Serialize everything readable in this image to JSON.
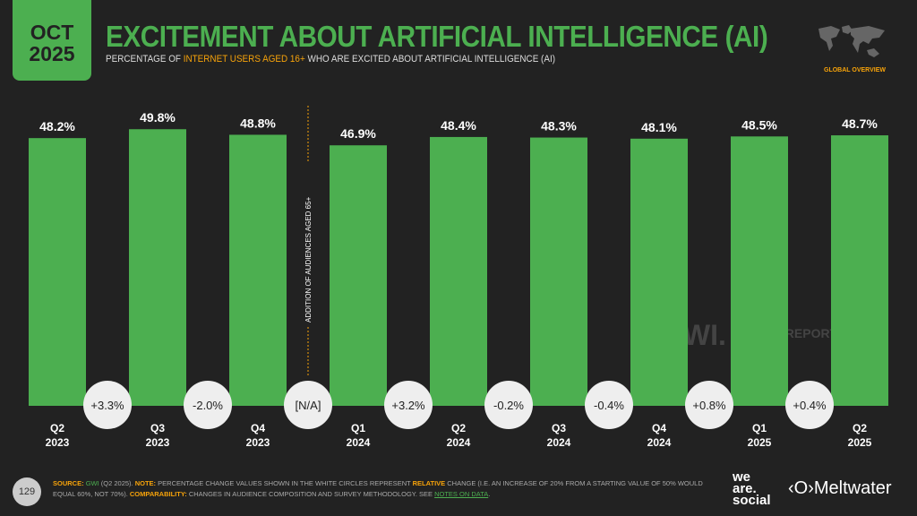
{
  "date": {
    "month": "OCT",
    "year": "2025"
  },
  "title": "EXCITEMENT ABOUT ARTIFICIAL INTELLIGENCE (AI)",
  "subtitle": {
    "pre": "PERCENTAGE OF ",
    "highlight": "INTERNET USERS AGED 16+",
    "post": " WHO ARE EXCITED ABOUT ARTIFICIAL INTELLIGENCE (AI)"
  },
  "region": "GLOBAL OVERVIEW",
  "chart_data": {
    "type": "bar",
    "categories": [
      [
        "Q2",
        "2023"
      ],
      [
        "Q3",
        "2023"
      ],
      [
        "Q4",
        "2023"
      ],
      [
        "Q1",
        "2024"
      ],
      [
        "Q2",
        "2024"
      ],
      [
        "Q3",
        "2024"
      ],
      [
        "Q4",
        "2024"
      ],
      [
        "Q1",
        "2025"
      ],
      [
        "Q2",
        "2025"
      ]
    ],
    "values": [
      48.2,
      49.8,
      48.8,
      46.9,
      48.4,
      48.3,
      48.1,
      48.5,
      48.7
    ],
    "value_labels": [
      "48.2%",
      "49.8%",
      "48.8%",
      "46.9%",
      "48.4%",
      "48.3%",
      "48.1%",
      "48.5%",
      "48.7%"
    ],
    "changes": [
      "+3.3%",
      "-2.0%",
      "[N/A]",
      "+3.2%",
      "-0.2%",
      "-0.4%",
      "+0.8%",
      "+0.4%"
    ],
    "annotation": "ADDITION OF AUDIENCES AGED 65+",
    "ylim": [
      0,
      52
    ],
    "bar_color": "#4caf50"
  },
  "watermarks": [
    "GWI.",
    "DATAREPORTAL"
  ],
  "page_number": "129",
  "footer": {
    "source_label": "SOURCE:",
    "source": "GWI",
    "source_rest": " (Q2 2025). ",
    "note_label": "NOTE:",
    "note": " PERCENTAGE CHANGE VALUES SHOWN IN THE WHITE CIRCLES REPRESENT ",
    "relative": "RELATIVE",
    "note2": " CHANGE (I.E. AN INCREASE OF 20% FROM A STARTING VALUE OF 50% WOULD EQUAL 60%, NOT 70%). ",
    "comp_label": "COMPARABILITY:",
    "comp": " CHANGES IN AUDIENCE COMPOSITION AND SURVEY METHODOLOGY. SEE ",
    "notes_link": "NOTES ON DATA",
    "end": "."
  },
  "logos": {
    "we_are_social": [
      "we",
      "are.",
      "social"
    ],
    "meltwater": "Meltwater"
  }
}
